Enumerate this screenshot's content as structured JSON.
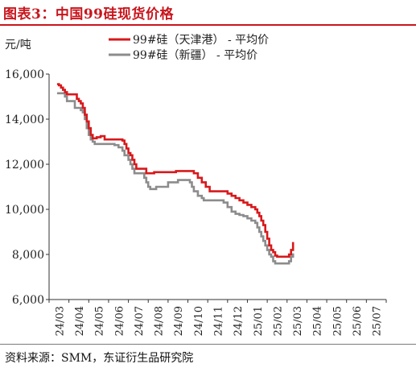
{
  "title": "图表3：中国99硅现货价格",
  "source": "资料来源：SMM，东证衍生品研究院",
  "chart_data": {
    "type": "line",
    "title": "",
    "ylabel": "元/吨",
    "xlabel": "",
    "ylim": [
      6000,
      16000
    ],
    "yticks": [
      6000,
      8000,
      10000,
      12000,
      14000,
      16000
    ],
    "ytick_labels": [
      "6,000",
      "8,000",
      "10,000",
      "12,000",
      "14,000",
      "16,000"
    ],
    "xticks": [
      "24/03",
      "24/04",
      "24/05",
      "24/06",
      "24/07",
      "24/08",
      "24/09",
      "24/10",
      "24/11",
      "24/12",
      "25/01",
      "25/02",
      "25/03",
      "25/04",
      "25/05",
      "25/06",
      "25/07"
    ],
    "grid": false,
    "legend": "top",
    "series": [
      {
        "name": "99#硅（天津港） - 平均价",
        "color": "#d7191c",
        "points": [
          [
            2.9,
            15550
          ],
          [
            3.0,
            15500
          ],
          [
            3.1,
            15400
          ],
          [
            3.2,
            15300
          ],
          [
            3.3,
            15200
          ],
          [
            3.4,
            15100
          ],
          [
            3.5,
            15100
          ],
          [
            3.7,
            15100
          ],
          [
            3.9,
            14900
          ],
          [
            4.0,
            14800
          ],
          [
            4.1,
            14700
          ],
          [
            4.2,
            14500
          ],
          [
            4.3,
            14200
          ],
          [
            4.4,
            13900
          ],
          [
            4.5,
            13600
          ],
          [
            4.6,
            13300
          ],
          [
            4.7,
            13150
          ],
          [
            4.8,
            13150
          ],
          [
            4.9,
            13200
          ],
          [
            5.1,
            13250
          ],
          [
            5.3,
            13100
          ],
          [
            5.6,
            13100
          ],
          [
            6.0,
            13100
          ],
          [
            6.2,
            13050
          ],
          [
            6.3,
            12900
          ],
          [
            6.4,
            12700
          ],
          [
            6.5,
            12500
          ],
          [
            6.6,
            12400
          ],
          [
            6.7,
            12200
          ],
          [
            6.8,
            12000
          ],
          [
            6.9,
            11800
          ],
          [
            7.3,
            11800
          ],
          [
            7.4,
            11600
          ],
          [
            7.6,
            11600
          ],
          [
            7.8,
            11650
          ],
          [
            8.5,
            11650
          ],
          [
            8.9,
            11700
          ],
          [
            9.7,
            11700
          ],
          [
            9.8,
            11600
          ],
          [
            10.0,
            11400
          ],
          [
            10.2,
            11200
          ],
          [
            10.4,
            11000
          ],
          [
            10.6,
            10800
          ],
          [
            11.3,
            10800
          ],
          [
            11.5,
            10700
          ],
          [
            11.7,
            10600
          ],
          [
            11.9,
            10500
          ],
          [
            12.1,
            10400
          ],
          [
            12.3,
            10300
          ],
          [
            12.5,
            10200
          ],
          [
            12.7,
            10100
          ],
          [
            12.9,
            10000
          ],
          [
            13.0,
            9850
          ],
          [
            13.1,
            9700
          ],
          [
            13.2,
            9500
          ],
          [
            13.3,
            9300
          ],
          [
            13.4,
            9000
          ],
          [
            13.5,
            8700
          ],
          [
            13.6,
            8400
          ],
          [
            13.7,
            8200
          ],
          [
            13.8,
            8100
          ],
          [
            13.9,
            7950
          ],
          [
            14.0,
            7900
          ],
          [
            14.5,
            7900
          ],
          [
            14.6,
            8000
          ],
          [
            14.7,
            8200
          ],
          [
            14.8,
            8550
          ]
        ]
      },
      {
        "name": "99#硅（新疆） - 平均价",
        "color": "#8c8c8c",
        "points": [
          [
            2.9,
            15150
          ],
          [
            3.1,
            15150
          ],
          [
            3.3,
            15000
          ],
          [
            3.4,
            14800
          ],
          [
            3.7,
            14800
          ],
          [
            3.8,
            14500
          ],
          [
            4.1,
            14400
          ],
          [
            4.2,
            14300
          ],
          [
            4.3,
            14000
          ],
          [
            4.4,
            13600
          ],
          [
            4.5,
            13300
          ],
          [
            4.6,
            13100
          ],
          [
            4.7,
            13000
          ],
          [
            4.8,
            12900
          ],
          [
            5.8,
            12850
          ],
          [
            6.0,
            12750
          ],
          [
            6.2,
            12600
          ],
          [
            6.3,
            12400
          ],
          [
            6.5,
            12200
          ],
          [
            6.6,
            12000
          ],
          [
            6.7,
            11800
          ],
          [
            6.8,
            11600
          ],
          [
            7.2,
            11600
          ],
          [
            7.3,
            11400
          ],
          [
            7.4,
            11200
          ],
          [
            7.5,
            11000
          ],
          [
            7.6,
            10900
          ],
          [
            7.8,
            10900
          ],
          [
            7.9,
            11000
          ],
          [
            8.3,
            11000
          ],
          [
            8.5,
            11200
          ],
          [
            8.8,
            11200
          ],
          [
            9.0,
            11300
          ],
          [
            9.4,
            11300
          ],
          [
            9.6,
            11200
          ],
          [
            9.7,
            11000
          ],
          [
            9.8,
            10800
          ],
          [
            10.0,
            10600
          ],
          [
            10.2,
            10500
          ],
          [
            10.3,
            10400
          ],
          [
            11.2,
            10400
          ],
          [
            11.3,
            10300
          ],
          [
            11.5,
            10100
          ],
          [
            11.7,
            9900
          ],
          [
            11.9,
            9800
          ],
          [
            12.1,
            9750
          ],
          [
            12.3,
            9700
          ],
          [
            12.5,
            9600
          ],
          [
            12.7,
            9500
          ],
          [
            12.9,
            9400
          ],
          [
            13.0,
            9200
          ],
          [
            13.1,
            9000
          ],
          [
            13.2,
            8800
          ],
          [
            13.3,
            8600
          ],
          [
            13.4,
            8400
          ],
          [
            13.5,
            8200
          ],
          [
            13.6,
            8000
          ],
          [
            13.7,
            7900
          ],
          [
            13.8,
            7700
          ],
          [
            13.9,
            7600
          ],
          [
            14.0,
            7600
          ],
          [
            14.5,
            7600
          ],
          [
            14.6,
            7700
          ],
          [
            14.7,
            7900
          ],
          [
            14.8,
            8050
          ]
        ]
      }
    ]
  }
}
